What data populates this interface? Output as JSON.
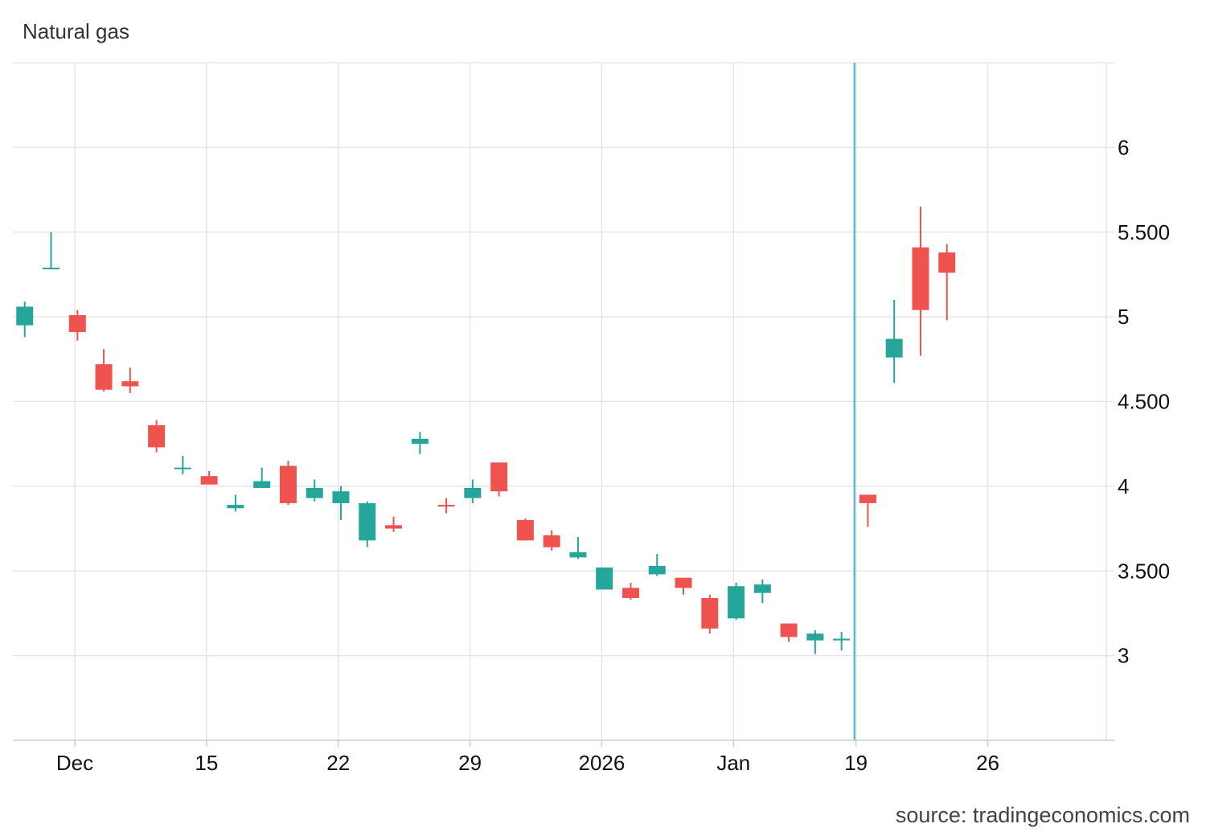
{
  "chart_title": "Natural gas",
  "source_text": "source: tradingeconomics.com",
  "colors": {
    "up": "#26a69a",
    "down": "#ef5350",
    "grid": "#e6e6e6",
    "marker": "#4aa8d8"
  },
  "chart_data": {
    "type": "candlestick",
    "title": "Natural gas",
    "ylim": [
      2.5,
      6.5
    ],
    "y_ticks": [
      {
        "value": 3,
        "label": "3"
      },
      {
        "value": 3.5,
        "label": "3.500"
      },
      {
        "value": 4,
        "label": "4"
      },
      {
        "value": 4.5,
        "label": "4.500"
      },
      {
        "value": 5,
        "label": "5"
      },
      {
        "value": 5.5,
        "label": "5.500"
      },
      {
        "value": 6,
        "label": "6"
      }
    ],
    "x_ticks": [
      {
        "index": 2.35,
        "label": "Dec"
      },
      {
        "index": 7.35,
        "label": "15"
      },
      {
        "index": 12.35,
        "label": "22"
      },
      {
        "index": 17.35,
        "label": "29"
      },
      {
        "index": 22.35,
        "label": "2026"
      },
      {
        "index": 27.35,
        "label": "Jan"
      },
      {
        "index": 32.0,
        "label": "19"
      },
      {
        "index": 37.0,
        "label": "26"
      }
    ],
    "x_range": [
      0,
      41.5
    ],
    "current_marker_index": 31.94,
    "candles": [
      {
        "i": 0.45,
        "open": 4.95,
        "close": 5.06,
        "high": 5.09,
        "low": 4.88
      },
      {
        "i": 1.45,
        "open": 5.29,
        "close": 5.29,
        "high": 5.5,
        "low": 5.28
      },
      {
        "i": 2.45,
        "open": 5.01,
        "close": 4.91,
        "high": 5.04,
        "low": 4.86
      },
      {
        "i": 3.45,
        "open": 4.72,
        "close": 4.57,
        "high": 4.81,
        "low": 4.56
      },
      {
        "i": 4.45,
        "open": 4.62,
        "close": 4.59,
        "high": 4.7,
        "low": 4.55
      },
      {
        "i": 5.45,
        "open": 4.36,
        "close": 4.23,
        "high": 4.39,
        "low": 4.2
      },
      {
        "i": 6.45,
        "open": 4.11,
        "close": 4.11,
        "high": 4.18,
        "low": 4.07
      },
      {
        "i": 7.45,
        "open": 4.06,
        "close": 4.01,
        "high": 4.09,
        "low": 4.01
      },
      {
        "i": 8.45,
        "open": 3.87,
        "close": 3.89,
        "high": 3.95,
        "low": 3.85
      },
      {
        "i": 9.45,
        "open": 3.99,
        "close": 4.03,
        "high": 4.11,
        "low": 3.99
      },
      {
        "i": 10.45,
        "open": 4.12,
        "close": 3.9,
        "high": 4.15,
        "low": 3.89
      },
      {
        "i": 11.45,
        "open": 3.93,
        "close": 3.99,
        "high": 4.04,
        "low": 3.91
      },
      {
        "i": 12.45,
        "open": 3.9,
        "close": 3.97,
        "high": 4.0,
        "low": 3.8
      },
      {
        "i": 13.45,
        "open": 3.68,
        "close": 3.9,
        "high": 3.91,
        "low": 3.64
      },
      {
        "i": 14.45,
        "open": 3.77,
        "close": 3.75,
        "high": 3.82,
        "low": 3.73
      },
      {
        "i": 15.45,
        "open": 4.25,
        "close": 4.28,
        "high": 4.32,
        "low": 4.19
      },
      {
        "i": 16.45,
        "open": 3.89,
        "close": 3.88,
        "high": 3.93,
        "low": 3.84
      },
      {
        "i": 17.45,
        "open": 3.93,
        "close": 3.99,
        "high": 4.04,
        "low": 3.9
      },
      {
        "i": 18.45,
        "open": 4.14,
        "close": 3.97,
        "high": 4.14,
        "low": 3.94
      },
      {
        "i": 19.45,
        "open": 3.8,
        "close": 3.68,
        "high": 3.81,
        "low": 3.68
      },
      {
        "i": 20.45,
        "open": 3.71,
        "close": 3.64,
        "high": 3.74,
        "low": 3.62
      },
      {
        "i": 21.45,
        "open": 3.58,
        "close": 3.61,
        "high": 3.7,
        "low": 3.57
      },
      {
        "i": 22.45,
        "open": 3.39,
        "close": 3.52,
        "high": 3.52,
        "low": 3.39
      },
      {
        "i": 23.45,
        "open": 3.4,
        "close": 3.34,
        "high": 3.43,
        "low": 3.33
      },
      {
        "i": 24.45,
        "open": 3.48,
        "close": 3.53,
        "high": 3.6,
        "low": 3.47
      },
      {
        "i": 25.45,
        "open": 3.46,
        "close": 3.4,
        "high": 3.46,
        "low": 3.36
      },
      {
        "i": 26.45,
        "open": 3.34,
        "close": 3.16,
        "high": 3.36,
        "low": 3.13
      },
      {
        "i": 27.45,
        "open": 3.22,
        "close": 3.41,
        "high": 3.43,
        "low": 3.21
      },
      {
        "i": 28.45,
        "open": 3.37,
        "close": 3.42,
        "high": 3.45,
        "low": 3.31
      },
      {
        "i": 29.45,
        "open": 3.19,
        "close": 3.11,
        "high": 3.19,
        "low": 3.08
      },
      {
        "i": 30.45,
        "open": 3.09,
        "close": 3.13,
        "high": 3.15,
        "low": 3.01
      },
      {
        "i": 31.45,
        "open": 3.09,
        "close": 3.1,
        "high": 3.14,
        "low": 3.03
      },
      {
        "i": 32.45,
        "open": 3.95,
        "close": 3.9,
        "high": 3.95,
        "low": 3.76
      },
      {
        "i": 33.45,
        "open": 4.76,
        "close": 4.87,
        "high": 5.1,
        "low": 4.61
      },
      {
        "i": 34.45,
        "open": 5.41,
        "close": 5.04,
        "high": 5.65,
        "low": 4.77
      },
      {
        "i": 35.45,
        "open": 5.38,
        "close": 5.26,
        "high": 5.43,
        "low": 4.98
      }
    ]
  }
}
